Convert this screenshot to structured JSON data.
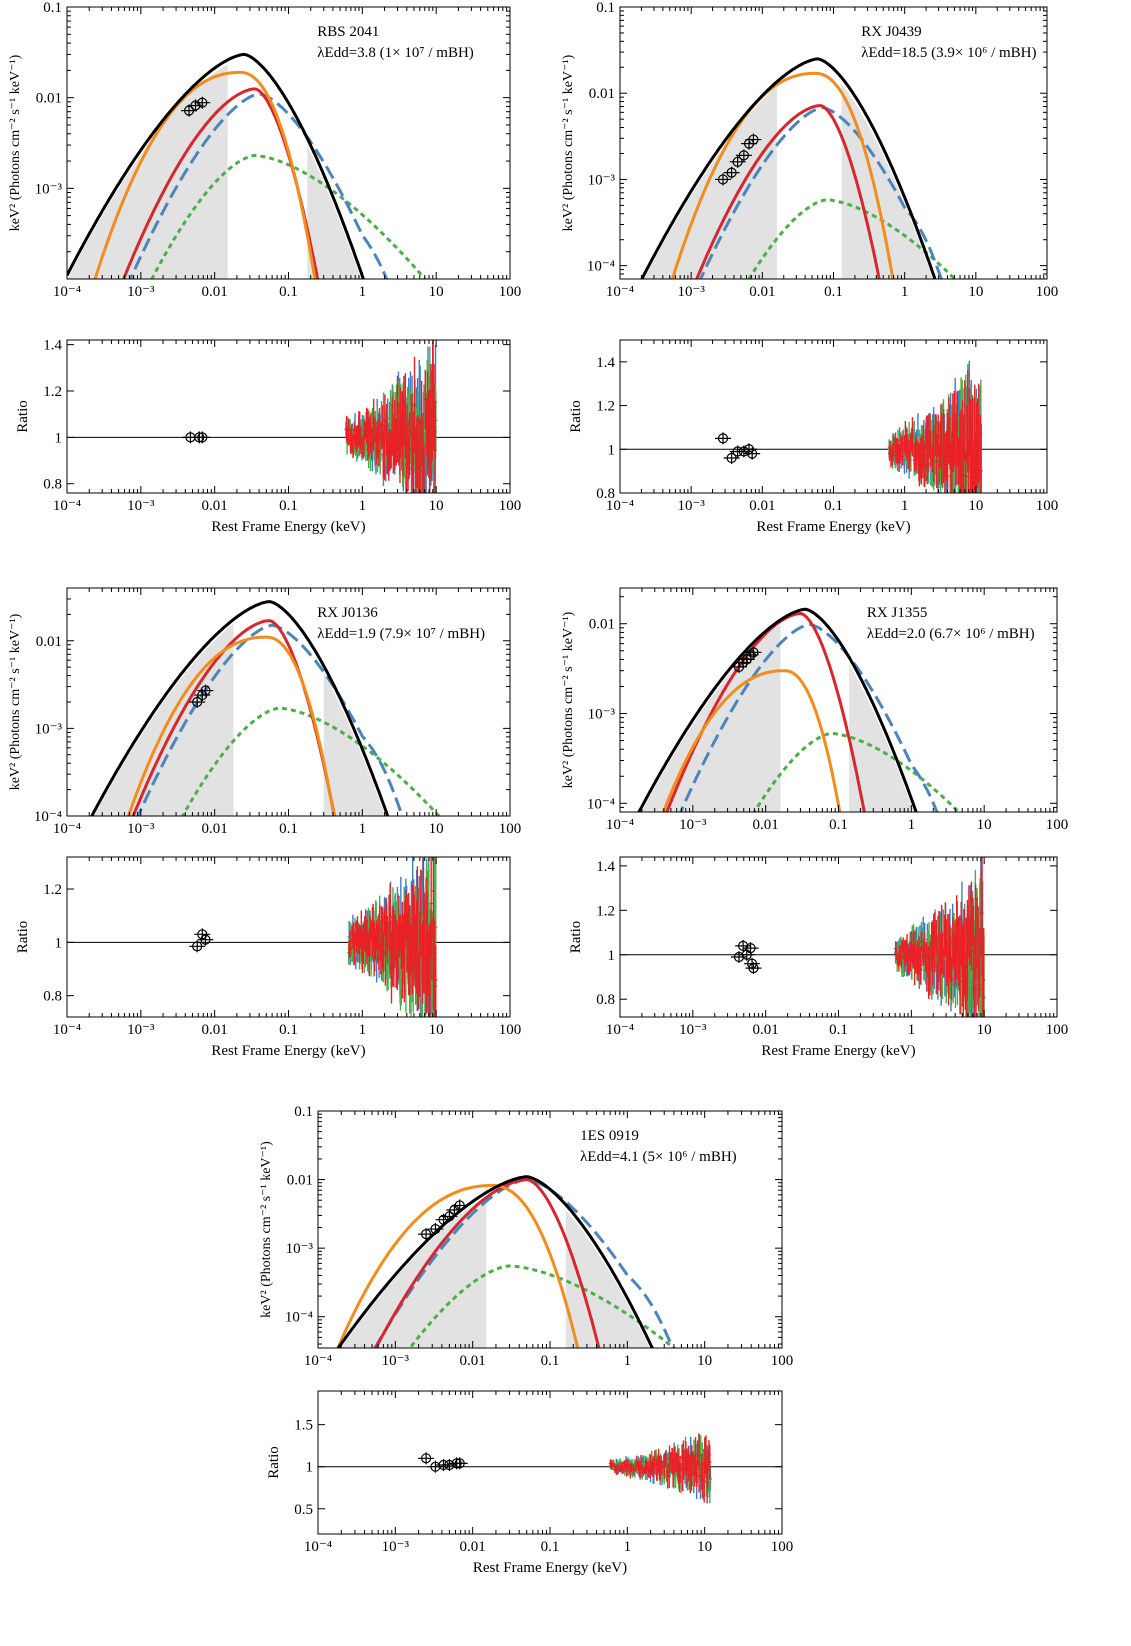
{
  "colors": {
    "total": "#000000",
    "disk": "#f28c1c",
    "warm_corona": "#d7272e",
    "reflection": "#4a86bd",
    "hot_corona": "#4caf48",
    "absorbed_region": "#e2e2e2",
    "data_black": "#000000",
    "data_blue": "#3c7fc1",
    "data_green": "#4caf48",
    "data_red": "#ea2027"
  },
  "common": {
    "spectrum_ylabel": "keV² (Photons cm⁻² s⁻¹ keV⁻¹)",
    "ratio_ylabel": "Ratio",
    "ratio_xlabel": "Rest Frame Energy (keV)",
    "x_ticks": [
      "10⁻⁴",
      "10⁻³",
      "0.01",
      "0.1",
      "1",
      "10",
      "100"
    ]
  },
  "chart_data": [
    {
      "type": "line",
      "object": "RBS 2041",
      "annotation": "λEdd=3.8 (1× 10⁷ / mBH)",
      "xscale": "log",
      "yscale": "log",
      "xlim": [
        0.0001,
        100
      ],
      "ylim": [
        0.0001,
        0.1
      ],
      "y_ticks": [
        "0.1",
        "0.01",
        "10⁻³"
      ],
      "peaks": {
        "total": [
          0.025,
          0.03
        ],
        "disk": [
          0.022,
          0.019
        ],
        "warm": [
          0.035,
          0.0125
        ],
        "refl": [
          0.04,
          0.011
        ],
        "hot": [
          0.035,
          0.0023
        ]
      },
      "disk_cut": 0.11,
      "gray_low_end": 0.015,
      "gray_high_start": 0.18,
      "photometry": [
        [
          0.0045,
          0.0072
        ],
        [
          0.0055,
          0.0082
        ],
        [
          0.0068,
          0.0088
        ]
      ],
      "ratio": {
        "ylim": [
          0.76,
          1.42
        ],
        "y_ticks": [
          "1.4",
          "1.2",
          "1",
          "0.8"
        ],
        "points": [
          [
            0.0047,
            1.0
          ],
          [
            0.0062,
            1.0
          ],
          [
            0.0068,
            1.0
          ]
        ],
        "xray_range": [
          0.6,
          10
        ]
      }
    },
    {
      "type": "line",
      "object": "RX J0439",
      "annotation": "λEdd=18.5 (3.9× 10⁶ / mBH)",
      "xscale": "log",
      "yscale": "log",
      "xlim": [
        0.0001,
        100
      ],
      "ylim": [
        7e-05,
        0.1
      ],
      "y_ticks": [
        "0.1",
        "0.01",
        "10⁻³",
        "10⁻⁴"
      ],
      "peaks": {
        "total": [
          0.06,
          0.025
        ],
        "disk": [
          0.055,
          0.017
        ],
        "warm": [
          0.065,
          0.0072
        ],
        "refl": [
          0.07,
          0.0068
        ],
        "hot": [
          0.08,
          0.00058
        ]
      },
      "disk_cut": 0.3,
      "gray_low_end": 0.016,
      "gray_high_start": 0.13,
      "photometry": [
        [
          0.0028,
          0.001
        ],
        [
          0.0037,
          0.0012
        ],
        [
          0.0045,
          0.0016
        ],
        [
          0.0055,
          0.0019
        ],
        [
          0.0065,
          0.0026
        ],
        [
          0.0075,
          0.0029
        ]
      ],
      "ratio": {
        "ylim": [
          0.8,
          1.5
        ],
        "y_ticks": [
          "1.4",
          "1.2",
          "1",
          "0.8"
        ],
        "points": [
          [
            0.0028,
            1.05
          ],
          [
            0.0037,
            0.96
          ],
          [
            0.0045,
            0.99
          ],
          [
            0.0055,
            0.99
          ],
          [
            0.0065,
            1.0
          ],
          [
            0.0072,
            0.98
          ]
        ],
        "xray_range": [
          0.6,
          12
        ]
      }
    },
    {
      "type": "line",
      "object": "RX J0136",
      "annotation": "λEdd=1.9 (7.9× 10⁷ / mBH)",
      "xscale": "log",
      "yscale": "log",
      "xlim": [
        0.0001,
        100
      ],
      "ylim": [
        0.0001,
        0.04
      ],
      "y_ticks": [
        "0.01",
        "10⁻³",
        "10⁻⁴"
      ],
      "peaks": {
        "total": [
          0.055,
          0.028
        ],
        "disk": [
          0.05,
          0.011
        ],
        "warm": [
          0.055,
          0.017
        ],
        "refl": [
          0.06,
          0.015
        ],
        "hot": [
          0.075,
          0.0017
        ]
      },
      "disk_cut": 0.23,
      "gray_low_end": 0.018,
      "gray_high_start": 0.3,
      "photometry": [
        [
          0.0058,
          0.002
        ],
        [
          0.0068,
          0.0024
        ],
        [
          0.0075,
          0.0027
        ]
      ],
      "ratio": {
        "ylim": [
          0.72,
          1.32
        ],
        "y_ticks": [
          "1.2",
          "1",
          "0.8"
        ],
        "points": [
          [
            0.0058,
            0.985
          ],
          [
            0.0068,
            1.03
          ],
          [
            0.0075,
            1.01
          ]
        ],
        "xray_range": [
          0.65,
          10
        ]
      }
    },
    {
      "type": "line",
      "object": "RX J1355",
      "annotation": "λEdd=2.0 (6.7× 10⁶ / mBH)",
      "xscale": "log",
      "yscale": "log",
      "xlim": [
        0.0001,
        100
      ],
      "ylim": [
        8e-05,
        0.025
      ],
      "y_ticks": [
        "0.01",
        "10⁻³",
        "10⁻⁴"
      ],
      "peaks": {
        "total": [
          0.035,
          0.0145
        ],
        "disk": [
          0.018,
          0.003
        ],
        "warm": [
          0.03,
          0.013
        ],
        "refl": [
          0.04,
          0.0098
        ],
        "hot": [
          0.08,
          0.0006
        ]
      },
      "disk_cut": 0.075,
      "gray_low_end": 0.016,
      "gray_high_start": 0.14,
      "photometry": [
        [
          0.0043,
          0.0033
        ],
        [
          0.0049,
          0.0037
        ],
        [
          0.0055,
          0.004
        ],
        [
          0.0062,
          0.0045
        ],
        [
          0.0068,
          0.0048
        ]
      ],
      "ratio": {
        "ylim": [
          0.72,
          1.44
        ],
        "y_ticks": [
          "1.4",
          "1.2",
          "1",
          "0.8"
        ],
        "points": [
          [
            0.0043,
            0.99
          ],
          [
            0.0049,
            1.04
          ],
          [
            0.0055,
            1.0
          ],
          [
            0.0062,
            1.03
          ],
          [
            0.0065,
            0.96
          ],
          [
            0.0068,
            0.94
          ]
        ],
        "xray_range": [
          0.6,
          10
        ]
      }
    },
    {
      "type": "line",
      "object": "1ES 0919",
      "annotation": "λEdd=4.1 (5× 10⁶ / mBH)",
      "xscale": "log",
      "yscale": "log",
      "xlim": [
        0.0001,
        100
      ],
      "ylim": [
        3.5e-05,
        0.1
      ],
      "y_ticks": [
        "0.1",
        "0.01",
        "10⁻³",
        "10⁻⁴"
      ],
      "peaks": {
        "total": [
          0.05,
          0.011
        ],
        "disk": [
          0.018,
          0.0082
        ],
        "warm": [
          0.05,
          0.01
        ],
        "refl": [
          0.05,
          0.01
        ],
        "hot": [
          0.03,
          0.00055
        ]
      },
      "disk_cut": 0.1,
      "gray_low_end": 0.015,
      "gray_high_start": 0.16,
      "photometry": [
        [
          0.0025,
          0.0016
        ],
        [
          0.0033,
          0.0019
        ],
        [
          0.0042,
          0.0026
        ],
        [
          0.005,
          0.0029
        ],
        [
          0.0058,
          0.0036
        ],
        [
          0.0068,
          0.0042
        ]
      ],
      "ratio": {
        "ylim": [
          0.2,
          1.9
        ],
        "y_ticks": [
          "1.5",
          "1",
          "0.5"
        ],
        "points": [
          [
            0.0025,
            1.1
          ],
          [
            0.0033,
            1.0
          ],
          [
            0.0042,
            1.02
          ],
          [
            0.005,
            1.02
          ],
          [
            0.0062,
            1.04
          ],
          [
            0.0068,
            1.04
          ]
        ],
        "xray_range": [
          0.6,
          12
        ]
      }
    }
  ]
}
